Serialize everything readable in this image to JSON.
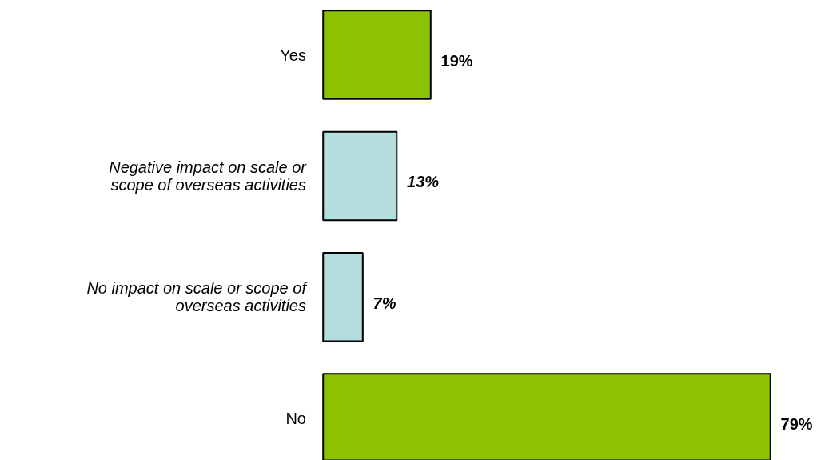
{
  "chart_data": {
    "type": "bar",
    "orientation": "horizontal",
    "categories": [
      "Yes",
      "Negative impact on scale or scope of overseas activities",
      "No impact on scale or scope of overseas activities",
      "No"
    ],
    "values": [
      19,
      13,
      7,
      79
    ],
    "colors": [
      "#8cc200",
      "#b4dde0",
      "#b4dde0",
      "#8cc200"
    ],
    "value_labels": [
      "19%",
      "13%",
      "7%",
      "79%"
    ]
  }
}
